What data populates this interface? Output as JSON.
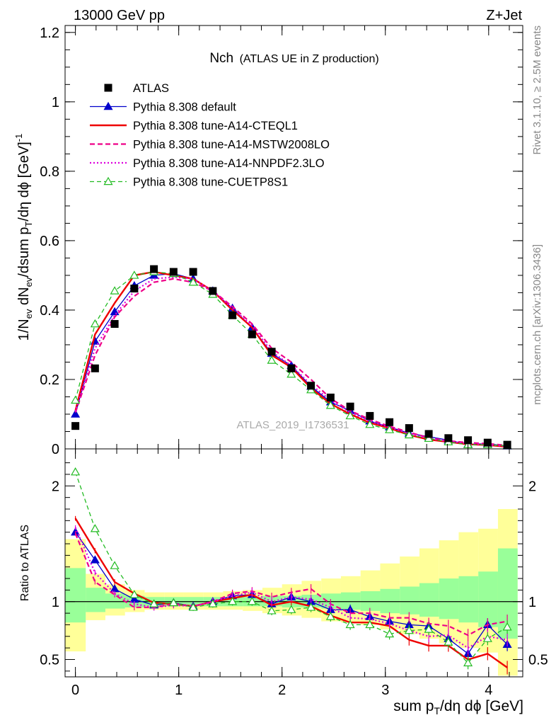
{
  "header": {
    "left": "13000 GeV pp",
    "right": "Z+Jet"
  },
  "side_labels": {
    "rivet": "Rivet 3.1.10, ≥ 2.5M events",
    "mcplots": "mcplots.cern.ch [arXiv:1306.3436]"
  },
  "watermark": "ATLAS_2019_I1736531",
  "colors": {
    "data": "#000000",
    "default": "#0000cc",
    "cteql1": "#ee0000",
    "mstw": "#ee0088",
    "nnpdf": "#dd00dd",
    "cuetp8s1": "#22bb22",
    "band_inner": "#99ff99",
    "band_outer": "#ffff99"
  },
  "chart_data": [
    {
      "type": "line",
      "title_main": "Nch",
      "title_sub": "(ATLAS UE in Z production)",
      "ylabel": "1/N_ev dN_ev/dsum p_T/dη dϕ [GeV]^-1",
      "xlim": [
        -0.1,
        4.33
      ],
      "ylim": [
        0,
        1.22
      ],
      "yticks": [
        0,
        0.2,
        0.4,
        0.6,
        0.8,
        1,
        1.2
      ],
      "ytick_labels": [
        "0",
        "0.2",
        "0.4",
        "0.6",
        "0.8",
        "1",
        "1.2"
      ],
      "x": [
        0,
        0.19,
        0.38,
        0.57,
        0.76,
        0.95,
        1.14,
        1.33,
        1.52,
        1.71,
        1.9,
        2.09,
        2.28,
        2.47,
        2.66,
        2.85,
        3.04,
        3.23,
        3.42,
        3.61,
        3.8,
        3.99,
        4.18
      ],
      "legend": [
        {
          "key": "data",
          "label": "ATLAS",
          "marker": "square",
          "dash": "none"
        },
        {
          "key": "default",
          "label": "Pythia 8.308 default",
          "marker": "triangle",
          "dash": "solid"
        },
        {
          "key": "cteql1",
          "label": "Pythia 8.308 tune-A14-CTEQL1",
          "marker": "none",
          "dash": "solid"
        },
        {
          "key": "mstw",
          "label": "Pythia 8.308 tune-A14-MSTW2008LO",
          "marker": "none",
          "dash": "dashed"
        },
        {
          "key": "nnpdf",
          "label": "Pythia 8.308 tune-A14-NNPDF2.3LO",
          "marker": "none",
          "dash": "dotted"
        },
        {
          "key": "cuetp8s1",
          "label": "Pythia 8.308 tune-CUETP8S1",
          "marker": "open-triangle",
          "dash": "dashed"
        }
      ],
      "series": [
        {
          "key": "data",
          "values": [
            0.066,
            0.232,
            0.36,
            0.462,
            0.518,
            0.51,
            0.51,
            0.455,
            0.385,
            0.33,
            0.28,
            0.232,
            0.182,
            0.148,
            0.122,
            0.095,
            0.077,
            0.06,
            0.043,
            0.031,
            0.025,
            0.018,
            0.012
          ]
        },
        {
          "key": "default",
          "values": [
            0.1,
            0.31,
            0.395,
            0.47,
            0.5,
            0.505,
            0.49,
            0.455,
            0.405,
            0.35,
            0.275,
            0.24,
            0.18,
            0.135,
            0.11,
            0.08,
            0.063,
            0.045,
            0.035,
            0.025,
            0.013,
            0.015,
            0.008
          ]
        },
        {
          "key": "cteql1",
          "values": [
            0.11,
            0.33,
            0.42,
            0.5,
            0.51,
            0.5,
            0.49,
            0.455,
            0.4,
            0.35,
            0.27,
            0.235,
            0.175,
            0.13,
            0.1,
            0.075,
            0.06,
            0.04,
            0.027,
            0.02,
            0.013,
            0.011,
            0.006
          ]
        },
        {
          "key": "mstw",
          "values": [
            0.105,
            0.27,
            0.38,
            0.44,
            0.48,
            0.49,
            0.48,
            0.455,
            0.41,
            0.36,
            0.29,
            0.25,
            0.2,
            0.145,
            0.11,
            0.085,
            0.065,
            0.048,
            0.032,
            0.023,
            0.018,
            0.015,
            0.01
          ]
        },
        {
          "key": "nnpdf",
          "values": [
            0.108,
            0.29,
            0.385,
            0.455,
            0.49,
            0.495,
            0.49,
            0.455,
            0.405,
            0.355,
            0.28,
            0.24,
            0.185,
            0.14,
            0.105,
            0.08,
            0.062,
            0.045,
            0.03,
            0.022,
            0.015,
            0.012,
            0.008
          ]
        },
        {
          "key": "cuetp8s1",
          "values": [
            0.14,
            0.36,
            0.455,
            0.5,
            0.51,
            0.505,
            0.48,
            0.445,
            0.385,
            0.33,
            0.255,
            0.215,
            0.17,
            0.125,
            0.095,
            0.07,
            0.055,
            0.04,
            0.03,
            0.02,
            0.012,
            0.012,
            0.009
          ]
        }
      ]
    },
    {
      "type": "line",
      "ylabel": "Ratio to ATLAS",
      "xlabel": "sum p_T/dη dϕ [GeV]",
      "xlim": [
        -0.1,
        4.33
      ],
      "ylim": [
        0.35,
        2.32
      ],
      "yticks": [
        0.5,
        1,
        2
      ],
      "ytick_labels": [
        "0.5",
        "1",
        "2"
      ],
      "xticks": [
        0,
        1,
        2,
        3,
        4
      ],
      "xtick_labels": [
        "0",
        "1",
        "2",
        "3",
        "4"
      ],
      "bin_edges": [
        -0.1,
        0.1,
        0.29,
        0.48,
        0.67,
        0.86,
        1.05,
        1.24,
        1.43,
        1.62,
        1.81,
        2.0,
        2.19,
        2.38,
        2.57,
        2.76,
        2.95,
        3.14,
        3.33,
        3.52,
        3.71,
        3.9,
        4.09,
        4.28
      ],
      "band_inner": [
        [
          0.82,
          1.29
        ],
        [
          0.91,
          1.12
        ],
        [
          0.94,
          1.07
        ],
        [
          0.95,
          1.05
        ],
        [
          0.96,
          1.04
        ],
        [
          0.96,
          1.04
        ],
        [
          0.96,
          1.04
        ],
        [
          0.96,
          1.04
        ],
        [
          0.96,
          1.04
        ],
        [
          0.96,
          1.04
        ],
        [
          0.96,
          1.05
        ],
        [
          0.95,
          1.05
        ],
        [
          0.95,
          1.06
        ],
        [
          0.94,
          1.07
        ],
        [
          0.93,
          1.08
        ],
        [
          0.92,
          1.09
        ],
        [
          0.9,
          1.11
        ],
        [
          0.89,
          1.13
        ],
        [
          0.87,
          1.16
        ],
        [
          0.85,
          1.2
        ],
        [
          0.82,
          1.22
        ],
        [
          0.78,
          1.26
        ],
        [
          0.68,
          1.46
        ]
      ],
      "band_outer": [
        [
          0.57,
          1.54
        ],
        [
          0.84,
          1.24
        ],
        [
          0.88,
          1.15
        ],
        [
          0.91,
          1.1
        ],
        [
          0.93,
          1.08
        ],
        [
          0.93,
          1.08
        ],
        [
          0.93,
          1.08
        ],
        [
          0.93,
          1.08
        ],
        [
          0.93,
          1.09
        ],
        [
          0.92,
          1.1
        ],
        [
          0.9,
          1.12
        ],
        [
          0.88,
          1.15
        ],
        [
          0.86,
          1.18
        ],
        [
          0.83,
          1.2
        ],
        [
          0.82,
          1.22
        ],
        [
          0.8,
          1.27
        ],
        [
          0.76,
          1.33
        ],
        [
          0.72,
          1.39
        ],
        [
          0.68,
          1.46
        ],
        [
          0.64,
          1.53
        ],
        [
          0.6,
          1.6
        ],
        [
          0.56,
          1.63
        ],
        [
          0.36,
          1.8
        ]
      ],
      "series": [
        {
          "key": "default",
          "values": [
            1.6,
            1.36,
            1.11,
            1.02,
            0.97,
            0.99,
            0.96,
            1.0,
            1.05,
            1.06,
            0.98,
            1.04,
            1.0,
            0.93,
            0.93,
            0.87,
            0.83,
            0.8,
            0.79,
            0.68,
            0.55,
            0.8,
            0.63
          ]
        },
        {
          "key": "cteql1",
          "values": [
            1.72,
            1.44,
            1.17,
            1.07,
            0.99,
            0.98,
            0.96,
            1.0,
            1.03,
            1.06,
            0.97,
            1.0,
            0.96,
            0.88,
            0.82,
            0.82,
            0.79,
            0.67,
            0.62,
            0.62,
            0.5,
            0.55,
            0.43
          ]
        },
        {
          "key": "mstw",
          "values": [
            1.59,
            1.17,
            1.06,
            0.95,
            0.95,
            0.98,
            0.96,
            1.0,
            1.07,
            1.09,
            1.04,
            1.08,
            1.11,
            0.98,
            0.9,
            0.9,
            0.86,
            0.86,
            0.81,
            0.79,
            0.71,
            0.8,
            0.83
          ]
        },
        {
          "key": "nnpdf",
          "values": [
            1.64,
            1.25,
            1.07,
            0.98,
            0.95,
            0.97,
            0.96,
            1.0,
            1.05,
            1.08,
            1.0,
            1.04,
            1.02,
            0.95,
            0.86,
            0.85,
            0.81,
            0.75,
            0.7,
            0.71,
            0.6,
            0.7,
            0.67
          ]
        },
        {
          "key": "cuetp8s1",
          "values": [
            2.12,
            1.63,
            1.31,
            1.06,
            0.98,
            0.99,
            0.95,
            0.98,
            1.0,
            1.0,
            0.92,
            0.93,
            0.95,
            0.87,
            0.8,
            0.8,
            0.72,
            0.75,
            0.76,
            0.65,
            0.47,
            0.68,
            0.78
          ]
        }
      ]
    }
  ]
}
